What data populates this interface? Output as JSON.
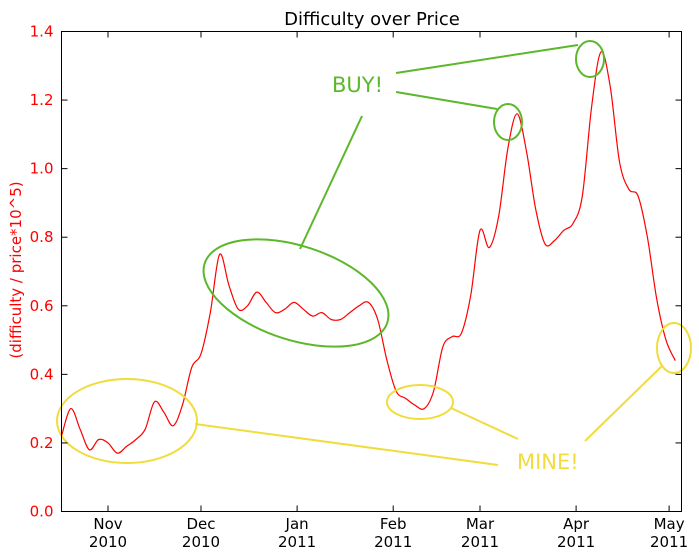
{
  "chart_data": {
    "type": "line",
    "title": "Difficulty over Price",
    "xlabel": "",
    "ylabel": "(difficulty / price*10^5)",
    "ylim": [
      0.0,
      1.4
    ],
    "xlim": [
      "2010-10-17",
      "2011-05-05"
    ],
    "yticks": [
      "0.0",
      "0.2",
      "0.4",
      "0.6",
      "0.8",
      "1.0",
      "1.2",
      "1.4"
    ],
    "xticks": [
      {
        "date": "2010-11-01",
        "month": "Nov",
        "year": "2010"
      },
      {
        "date": "2010-12-01",
        "month": "Dec",
        "year": "2010"
      },
      {
        "date": "2011-01-01",
        "month": "Jan",
        "year": "2011"
      },
      {
        "date": "2011-02-01",
        "month": "Feb",
        "year": "2011"
      },
      {
        "date": "2011-03-01",
        "month": "Mar",
        "year": "2011"
      },
      {
        "date": "2011-04-01",
        "month": "Apr",
        "year": "2011"
      },
      {
        "date": "2011-05-01",
        "month": "May",
        "year": "2011"
      }
    ],
    "grid": false,
    "series": [
      {
        "color": "#ff0000",
        "x": [
          "2010-10-17",
          "2010-10-20",
          "2010-10-23",
          "2010-10-26",
          "2010-10-29",
          "2010-11-01",
          "2010-11-04",
          "2010-11-07",
          "2010-11-10",
          "2010-11-13",
          "2010-11-16",
          "2010-11-19",
          "2010-11-22",
          "2010-11-25",
          "2010-11-28",
          "2010-12-01",
          "2010-12-04",
          "2010-12-07",
          "2010-12-10",
          "2010-12-13",
          "2010-12-16",
          "2010-12-19",
          "2010-12-22",
          "2010-12-25",
          "2010-12-28",
          "2010-12-31",
          "2011-01-03",
          "2011-01-06",
          "2011-01-09",
          "2011-01-12",
          "2011-01-15",
          "2011-01-18",
          "2011-01-21",
          "2011-01-24",
          "2011-01-27",
          "2011-01-30",
          "2011-02-02",
          "2011-02-05",
          "2011-02-08",
          "2011-02-11",
          "2011-02-14",
          "2011-02-17",
          "2011-02-20",
          "2011-02-23",
          "2011-02-26",
          "2011-03-01",
          "2011-03-04",
          "2011-03-07",
          "2011-03-10",
          "2011-03-13",
          "2011-03-16",
          "2011-03-19",
          "2011-03-22",
          "2011-03-25",
          "2011-03-28",
          "2011-03-31",
          "2011-04-03",
          "2011-04-06",
          "2011-04-09",
          "2011-04-12",
          "2011-04-15",
          "2011-04-18",
          "2011-04-21",
          "2011-04-24",
          "2011-04-27",
          "2011-04-30",
          "2011-05-03"
        ],
        "values": [
          0.22,
          0.3,
          0.24,
          0.18,
          0.21,
          0.2,
          0.17,
          0.19,
          0.21,
          0.24,
          0.32,
          0.29,
          0.25,
          0.31,
          0.42,
          0.46,
          0.58,
          0.75,
          0.66,
          0.59,
          0.6,
          0.64,
          0.61,
          0.58,
          0.59,
          0.61,
          0.59,
          0.57,
          0.58,
          0.56,
          0.56,
          0.58,
          0.6,
          0.61,
          0.56,
          0.44,
          0.35,
          0.33,
          0.31,
          0.3,
          0.35,
          0.48,
          0.51,
          0.52,
          0.63,
          0.82,
          0.77,
          0.86,
          1.06,
          1.16,
          1.05,
          0.88,
          0.78,
          0.79,
          0.82,
          0.84,
          0.92,
          1.18,
          1.34,
          1.24,
          1.02,
          0.94,
          0.92,
          0.8,
          0.62,
          0.5,
          0.44
        ]
      }
    ],
    "annotations": [
      {
        "text": "BUY!",
        "color": "#5cb82a"
      },
      {
        "text": "MINE!",
        "color": "#f0dc3c"
      }
    ]
  }
}
